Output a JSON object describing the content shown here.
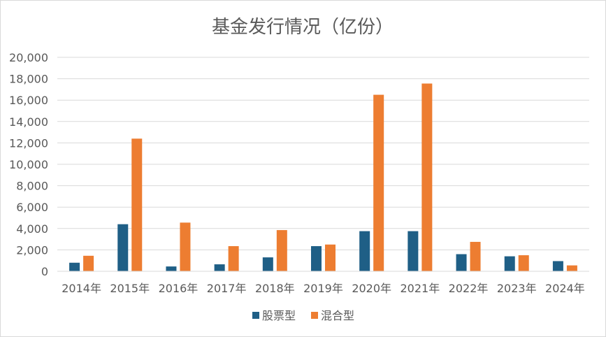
{
  "chart_data": {
    "type": "bar",
    "title": "基金发行情况（亿份）",
    "xlabel": "",
    "ylabel": "",
    "categories": [
      "2014年",
      "2015年",
      "2016年",
      "2017年",
      "2018年",
      "2019年",
      "2020年",
      "2021年",
      "2022年",
      "2023年",
      "2024年"
    ],
    "series": [
      {
        "name": "股票型",
        "color": "#1f5f86",
        "values": [
          800,
          4400,
          450,
          650,
          1300,
          2350,
          3750,
          3750,
          1600,
          1400,
          950
        ]
      },
      {
        "name": "混合型",
        "color": "#ed7d31",
        "values": [
          1450,
          12400,
          4550,
          2350,
          3850,
          2500,
          16500,
          17550,
          2750,
          1500,
          550
        ]
      }
    ],
    "ylim": [
      0,
      20000
    ],
    "yticks": [
      "0",
      "2,000",
      "4,000",
      "6,000",
      "8,000",
      "10,000",
      "12,000",
      "14,000",
      "16,000",
      "18,000",
      "20,000"
    ],
    "grid": true,
    "legend_position": "bottom"
  }
}
